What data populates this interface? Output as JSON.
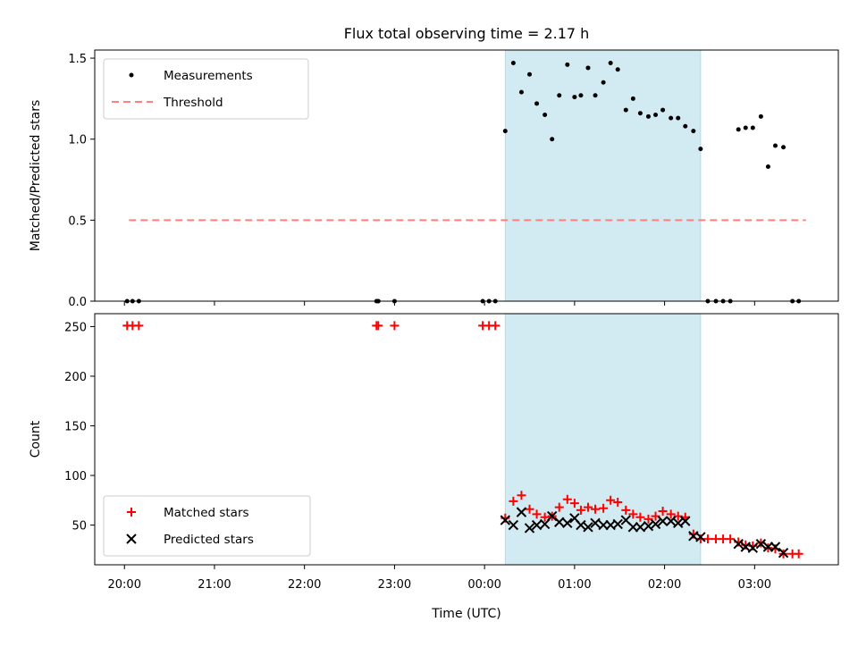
{
  "chart_data": {
    "type": "scatter",
    "title": "Flux total observing time = 2.17 h",
    "xlabel": "Time (UTC)",
    "x_unit": "hours, 20:00 of night start = 20, 03:00 next day = 27",
    "x_ticks": [
      {
        "x": 20,
        "label": "20:00"
      },
      {
        "x": 21,
        "label": "21:00"
      },
      {
        "x": 22,
        "label": "22:00"
      },
      {
        "x": 23,
        "label": "23:00"
      },
      {
        "x": 24,
        "label": "00:00"
      },
      {
        "x": 25,
        "label": "01:00"
      },
      {
        "x": 26,
        "label": "02:00"
      },
      {
        "x": 27,
        "label": "03:00"
      }
    ],
    "xlim": [
      19.67,
      27.93
    ],
    "shaded_span": {
      "x_start": 24.23,
      "x_end": 26.4,
      "color": "#add8e6"
    },
    "panels": [
      {
        "ylabel": "Matched/Predicted stars",
        "ylim": [
          0,
          1.55
        ],
        "y_ticks": [
          {
            "y": 0.0,
            "label": "0.0"
          },
          {
            "y": 0.5,
            "label": "0.5"
          },
          {
            "y": 1.0,
            "label": "1.0"
          },
          {
            "y": 1.5,
            "label": "1.5"
          }
        ],
        "legend": {
          "position": "upper-left",
          "entries": [
            "Measurements",
            "Threshold"
          ]
        },
        "series": [
          {
            "name": "Measurements",
            "marker": "dot",
            "color": "#000000",
            "points": [
              [
                20.03,
                0
              ],
              [
                20.09,
                0
              ],
              [
                20.16,
                0
              ],
              [
                22.8,
                0
              ],
              [
                22.82,
                0
              ],
              [
                23.0,
                0
              ],
              [
                23.98,
                0
              ],
              [
                24.05,
                0
              ],
              [
                24.12,
                0
              ],
              [
                24.23,
                1.05
              ],
              [
                24.32,
                1.47
              ],
              [
                24.41,
                1.29
              ],
              [
                24.5,
                1.4
              ],
              [
                24.58,
                1.22
              ],
              [
                24.67,
                1.15
              ],
              [
                24.75,
                1.0
              ],
              [
                24.83,
                1.27
              ],
              [
                24.92,
                1.46
              ],
              [
                25.0,
                1.26
              ],
              [
                25.07,
                1.27
              ],
              [
                25.15,
                1.44
              ],
              [
                25.23,
                1.27
              ],
              [
                25.32,
                1.35
              ],
              [
                25.4,
                1.47
              ],
              [
                25.48,
                1.43
              ],
              [
                25.57,
                1.18
              ],
              [
                25.65,
                1.25
              ],
              [
                25.73,
                1.16
              ],
              [
                25.82,
                1.14
              ],
              [
                25.9,
                1.15
              ],
              [
                25.98,
                1.18
              ],
              [
                26.07,
                1.13
              ],
              [
                26.15,
                1.13
              ],
              [
                26.23,
                1.08
              ],
              [
                26.32,
                1.05
              ],
              [
                26.4,
                0.94
              ],
              [
                26.48,
                0
              ],
              [
                26.57,
                0
              ],
              [
                26.65,
                0
              ],
              [
                26.73,
                0
              ],
              [
                26.82,
                1.06
              ],
              [
                26.9,
                1.07
              ],
              [
                26.98,
                1.07
              ],
              [
                27.07,
                1.14
              ],
              [
                27.15,
                0.83
              ],
              [
                27.23,
                0.96
              ],
              [
                27.32,
                0.95
              ],
              [
                27.42,
                0
              ],
              [
                27.49,
                0
              ]
            ]
          },
          {
            "name": "Threshold",
            "style": "dashed",
            "color": "#ff7f7f",
            "x_range": [
              20.05,
              27.57
            ],
            "y": 0.5
          }
        ]
      },
      {
        "ylabel": "Count",
        "ylim": [
          10,
          263
        ],
        "y_ticks": [
          {
            "y": 50,
            "label": "50"
          },
          {
            "y": 100,
            "label": "100"
          },
          {
            "y": 150,
            "label": "150"
          },
          {
            "y": 200,
            "label": "200"
          },
          {
            "y": 250,
            "label": "250"
          }
        ],
        "legend": {
          "position": "lower-left",
          "entries": [
            "Matched stars",
            "Predicted stars"
          ]
        },
        "series": [
          {
            "name": "Matched stars",
            "marker": "plus",
            "color": "#ff0000",
            "points": [
              [
                20.03,
                251
              ],
              [
                20.09,
                251
              ],
              [
                20.16,
                251
              ],
              [
                22.8,
                251
              ],
              [
                22.82,
                251
              ],
              [
                23.0,
                251
              ],
              [
                23.98,
                251
              ],
              [
                24.05,
                251
              ],
              [
                24.12,
                251
              ],
              [
                24.23,
                57
              ],
              [
                24.32,
                74
              ],
              [
                24.41,
                80
              ],
              [
                24.5,
                66
              ],
              [
                24.58,
                61
              ],
              [
                24.67,
                58
              ],
              [
                24.75,
                59
              ],
              [
                24.83,
                68
              ],
              [
                24.92,
                76
              ],
              [
                25.0,
                72
              ],
              [
                25.07,
                65
              ],
              [
                25.15,
                68
              ],
              [
                25.23,
                66
              ],
              [
                25.32,
                67
              ],
              [
                25.4,
                75
              ],
              [
                25.48,
                73
              ],
              [
                25.57,
                65
              ],
              [
                25.65,
                61
              ],
              [
                25.73,
                58
              ],
              [
                25.82,
                56
              ],
              [
                25.9,
                59
              ],
              [
                25.98,
                64
              ],
              [
                26.07,
                61
              ],
              [
                26.15,
                59
              ],
              [
                26.23,
                58
              ],
              [
                26.32,
                41
              ],
              [
                26.4,
                36
              ],
              [
                26.48,
                36
              ],
              [
                26.57,
                36
              ],
              [
                26.65,
                36
              ],
              [
                26.73,
                36
              ],
              [
                26.82,
                33
              ],
              [
                26.9,
                30
              ],
              [
                26.98,
                29
              ],
              [
                27.07,
                32
              ],
              [
                27.15,
                27
              ],
              [
                27.23,
                26
              ],
              [
                27.32,
                21
              ],
              [
                27.42,
                21
              ],
              [
                27.49,
                21
              ]
            ]
          },
          {
            "name": "Predicted stars",
            "marker": "x",
            "color": "#000000",
            "points": [
              [
                24.23,
                55
              ],
              [
                24.32,
                50
              ],
              [
                24.41,
                63
              ],
              [
                24.5,
                47
              ],
              [
                24.58,
                50
              ],
              [
                24.67,
                51
              ],
              [
                24.75,
                59
              ],
              [
                24.83,
                53
              ],
              [
                24.92,
                52
              ],
              [
                25.0,
                57
              ],
              [
                25.07,
                50
              ],
              [
                25.15,
                48
              ],
              [
                25.23,
                52
              ],
              [
                25.32,
                50
              ],
              [
                25.4,
                50
              ],
              [
                25.48,
                51
              ],
              [
                25.57,
                55
              ],
              [
                25.65,
                48
              ],
              [
                25.73,
                48
              ],
              [
                25.82,
                49
              ],
              [
                25.9,
                51
              ],
              [
                25.98,
                54
              ],
              [
                26.07,
                54
              ],
              [
                26.15,
                52
              ],
              [
                26.23,
                54
              ],
              [
                26.32,
                39
              ],
              [
                26.4,
                38
              ],
              [
                26.82,
                31
              ],
              [
                26.9,
                28
              ],
              [
                26.98,
                27
              ],
              [
                27.07,
                31
              ],
              [
                27.15,
                28
              ],
              [
                27.23,
                28
              ],
              [
                27.32,
                22
              ]
            ]
          }
        ]
      }
    ]
  }
}
